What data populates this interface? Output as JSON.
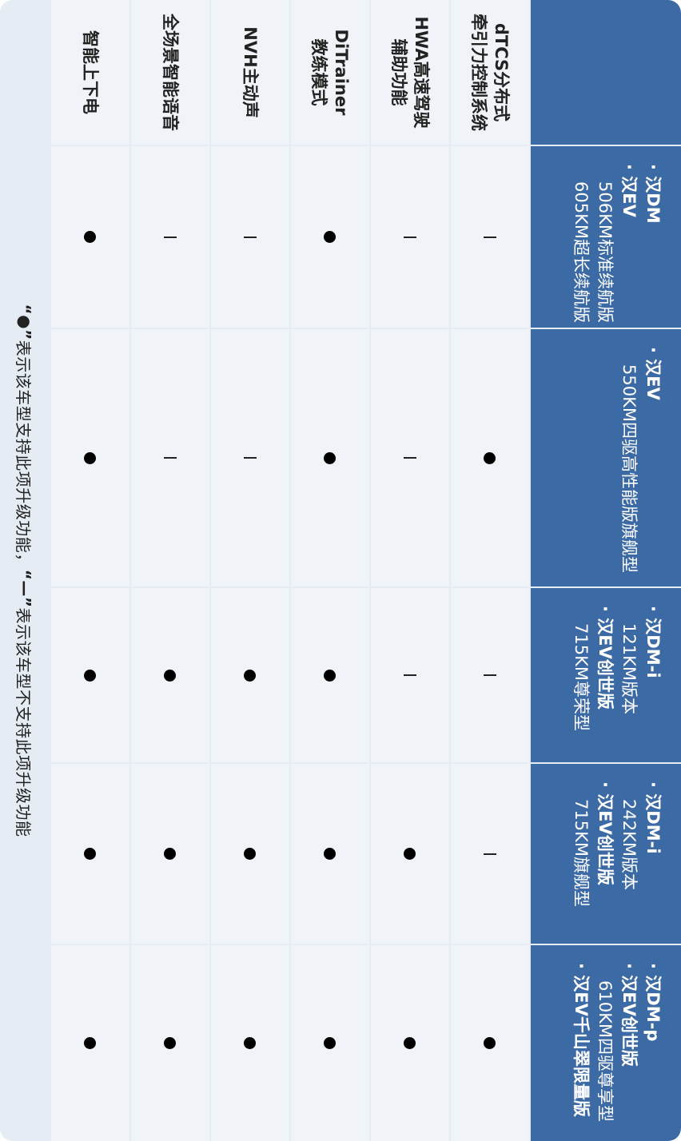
{
  "columns": [
    {
      "lines": []
    },
    {
      "lines": [
        {
          "type": "bullet",
          "text": "汉DM"
        },
        {
          "type": "bullet",
          "text": "汉EV"
        },
        {
          "type": "sub",
          "text": "506KM标准续航版"
        },
        {
          "type": "sub",
          "text": "605KM超长续航版"
        }
      ]
    },
    {
      "lines": [
        {
          "type": "bullet",
          "text": "汉EV"
        },
        {
          "type": "sub",
          "text": "550KM四驱高性能版旗舰型"
        }
      ]
    },
    {
      "lines": [
        {
          "type": "bullet",
          "text": "汉DM-i"
        },
        {
          "type": "sub",
          "text": "121KM版本"
        },
        {
          "type": "bullet",
          "text": "汉EV创世版"
        },
        {
          "type": "sub",
          "text": "715KM尊荣型"
        }
      ]
    },
    {
      "lines": [
        {
          "type": "bullet",
          "text": "汉DM-i"
        },
        {
          "type": "sub",
          "text": "242KM版本"
        },
        {
          "type": "bullet",
          "text": "汉EV创世版"
        },
        {
          "type": "sub",
          "text": "715KM旗舰型"
        }
      ]
    },
    {
      "lines": [
        {
          "type": "bullet",
          "text": "汉DM-p"
        },
        {
          "type": "bullet",
          "text": "汉EV创世版"
        },
        {
          "type": "sub",
          "text": "610KM四驱尊享型"
        },
        {
          "type": "bullet",
          "text": "汉EV千山翠限量版"
        }
      ]
    }
  ],
  "rows": [
    {
      "label": "dTCS分布式\n牵引力控制系统",
      "values": [
        "dash",
        "dot",
        "dash",
        "dash",
        "dot"
      ]
    },
    {
      "label": "HWA高速驾驶\n辅助功能",
      "values": [
        "dash",
        "dash",
        "dash",
        "dot",
        "dot"
      ]
    },
    {
      "label": "DiTrainer\n教练模式",
      "values": [
        "dot",
        "dot",
        "dot",
        "dot",
        "dot"
      ]
    },
    {
      "label": "NVH主动声",
      "values": [
        "dash",
        "dash",
        "dot",
        "dot",
        "dot"
      ]
    },
    {
      "label": "全场景智能语音",
      "values": [
        "dash",
        "dash",
        "dot",
        "dot",
        "dot"
      ]
    },
    {
      "label": "智能上下电",
      "values": [
        "dot",
        "dot",
        "dot",
        "dot",
        "dot"
      ]
    }
  ],
  "legend": {
    "dot_mark": "“●”",
    "dot_text": "表示该车型支持此项升级功能，",
    "dash_mark": "“—”",
    "dash_text": "表示该车型不支持此项升级功能"
  },
  "colors": {
    "header_bg": "#3c6aa5",
    "cell_bg": "#f0f4f8",
    "frame_bg": "#e5ecf4"
  }
}
